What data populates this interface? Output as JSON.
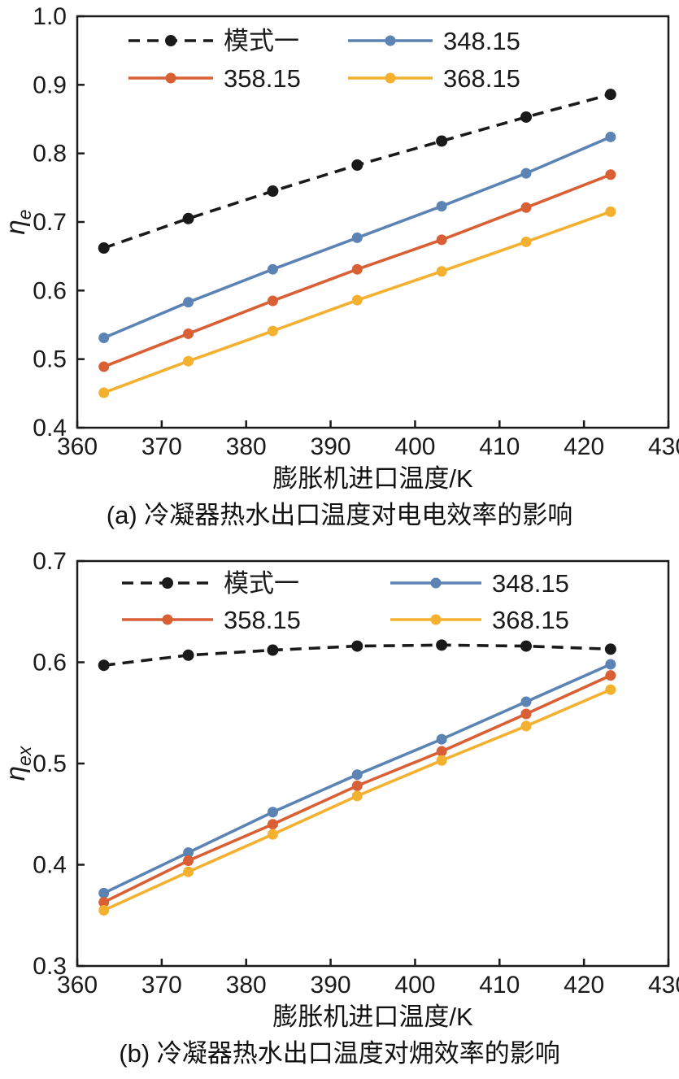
{
  "chart_data": [
    {
      "id": "chart-a",
      "type": "line",
      "caption": "(a) 冷凝器热水出口温度对电电效率的影响",
      "xlabel": "膨胀机进口温度/K",
      "ylabel_base": "η",
      "ylabel_sub": "e",
      "xlim": [
        360,
        430
      ],
      "ylim": [
        0.4,
        1.0
      ],
      "xticks": [
        360,
        370,
        380,
        390,
        400,
        410,
        420,
        430
      ],
      "xtick_labels": [
        "360",
        "370",
        "380",
        "390",
        "400",
        "410",
        "420",
        "430"
      ],
      "yticks": [
        0.4,
        0.5,
        0.6,
        0.7,
        0.8,
        0.9,
        1.0
      ],
      "ytick_labels": [
        "0.4",
        "0.5",
        "0.6",
        "0.7",
        "0.8",
        "0.9",
        "1.0"
      ],
      "x": [
        363.15,
        373.15,
        383.15,
        393.15,
        403.15,
        413.15,
        423.15
      ],
      "grid": false,
      "legend_position": "top-left-two-columns",
      "series": [
        {
          "name": "模式一",
          "color": "#1a1a1a",
          "style": "dashed",
          "marker": "circle",
          "values": [
            0.662,
            0.705,
            0.745,
            0.783,
            0.818,
            0.853,
            0.886
          ]
        },
        {
          "name": "348.15",
          "color": "#5b84b4",
          "style": "solid",
          "marker": "circle",
          "values": [
            0.531,
            0.583,
            0.631,
            0.677,
            0.723,
            0.771,
            0.824
          ]
        },
        {
          "name": "358.15",
          "color": "#d95f35",
          "style": "solid",
          "marker": "circle",
          "values": [
            0.489,
            0.537,
            0.585,
            0.631,
            0.674,
            0.721,
            0.769
          ]
        },
        {
          "name": "368.15",
          "color": "#f4b02f",
          "style": "solid",
          "marker": "circle",
          "values": [
            0.451,
            0.497,
            0.541,
            0.586,
            0.628,
            0.671,
            0.715
          ]
        }
      ]
    },
    {
      "id": "chart-b",
      "type": "line",
      "caption": "(b) 冷凝器热水出口温度对㶲效率的影响",
      "xlabel": "膨胀机进口温度/K",
      "ylabel_base": "η",
      "ylabel_sub": "ex",
      "xlim": [
        360,
        430
      ],
      "ylim": [
        0.3,
        0.7
      ],
      "xticks": [
        360,
        370,
        380,
        390,
        400,
        410,
        420,
        430
      ],
      "xtick_labels": [
        "360",
        "370",
        "380",
        "390",
        "400",
        "410",
        "420",
        "430"
      ],
      "yticks": [
        0.3,
        0.4,
        0.5,
        0.6,
        0.7
      ],
      "ytick_labels": [
        "0.3",
        "0.4",
        "0.5",
        "0.6",
        "0.7"
      ],
      "x": [
        363.15,
        373.15,
        383.15,
        393.15,
        403.15,
        413.15,
        423.15
      ],
      "grid": false,
      "legend_position": "top-left-two-columns",
      "series": [
        {
          "name": "模式一",
          "color": "#1a1a1a",
          "style": "dashed",
          "marker": "circle",
          "values": [
            0.597,
            0.607,
            0.612,
            0.616,
            0.617,
            0.616,
            0.613
          ]
        },
        {
          "name": "348.15",
          "color": "#5b84b4",
          "style": "solid",
          "marker": "circle",
          "values": [
            0.372,
            0.412,
            0.452,
            0.489,
            0.524,
            0.561,
            0.598
          ]
        },
        {
          "name": "358.15",
          "color": "#d95f35",
          "style": "solid",
          "marker": "circle",
          "values": [
            0.363,
            0.404,
            0.44,
            0.478,
            0.512,
            0.549,
            0.587
          ]
        },
        {
          "name": "368.15",
          "color": "#f4b02f",
          "style": "solid",
          "marker": "circle",
          "values": [
            0.355,
            0.393,
            0.43,
            0.468,
            0.503,
            0.537,
            0.573
          ]
        }
      ]
    }
  ]
}
